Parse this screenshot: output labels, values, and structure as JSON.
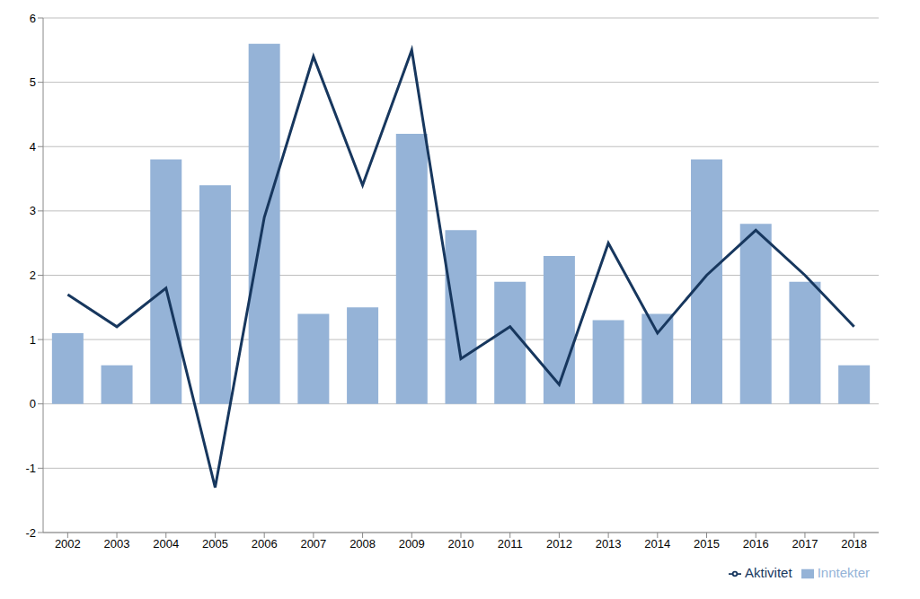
{
  "chart_data": {
    "type": "bar",
    "categories": [
      "2002",
      "2003",
      "2004",
      "2005",
      "2006",
      "2007",
      "2008",
      "2009",
      "2010",
      "2011",
      "2012",
      "2013",
      "2014",
      "2015",
      "2016",
      "2017",
      "2018"
    ],
    "series": [
      {
        "name": "Inntekter",
        "type": "bar",
        "color": "#95b3d7",
        "values": [
          1.1,
          0.6,
          3.8,
          3.4,
          5.6,
          1.4,
          1.5,
          4.2,
          2.7,
          1.9,
          2.3,
          1.3,
          1.4,
          3.8,
          2.8,
          1.9,
          0.6
        ]
      },
      {
        "name": "Aktivitet",
        "type": "line",
        "color": "#17375e",
        "values": [
          1.7,
          1.2,
          1.8,
          -1.3,
          2.9,
          5.4,
          3.4,
          5.5,
          0.7,
          1.2,
          0.3,
          2.5,
          1.1,
          2.0,
          2.7,
          2.0,
          1.2
        ]
      }
    ],
    "ylim": [
      -2,
      6
    ],
    "yticks": [
      -2,
      -1,
      0,
      1,
      2,
      3,
      4,
      5,
      6
    ],
    "grid": true,
    "legend": "bottom right"
  }
}
